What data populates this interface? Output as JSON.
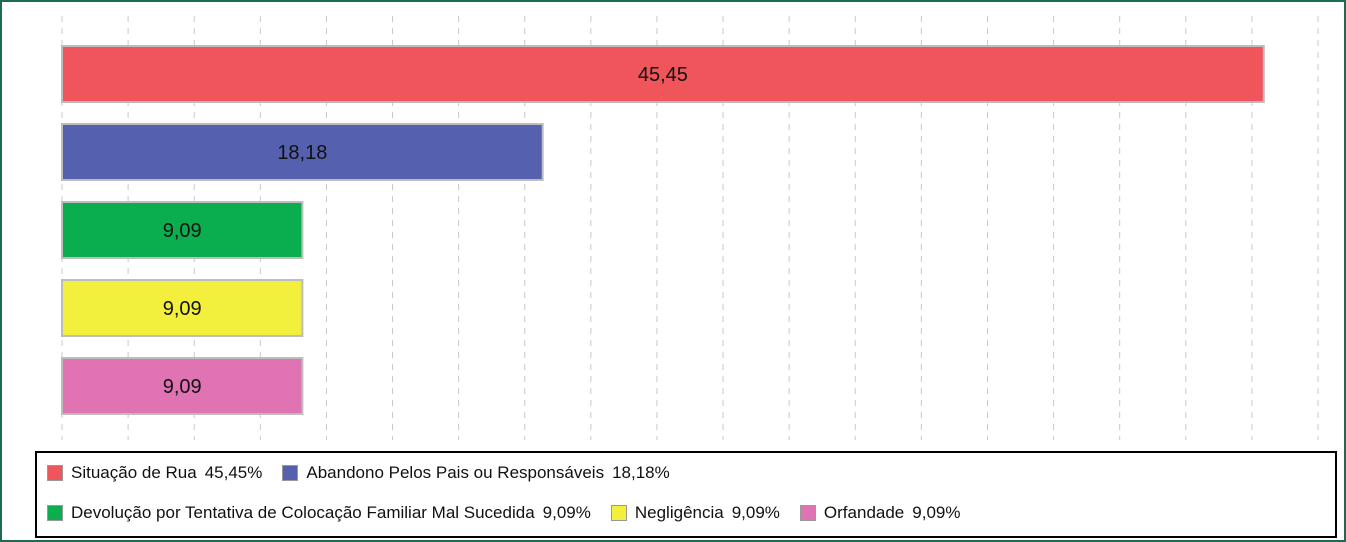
{
  "chart_data": {
    "type": "bar",
    "orientation": "horizontal",
    "categories": [
      "Situação de Rua",
      "Abandono Pelos Pais ou Responsáveis",
      "Devolução por Tentativa de Colocação Familiar Mal Sucedida",
      "Negligência",
      "Orfandade"
    ],
    "values": [
      45.45,
      18.18,
      9.09,
      9.09,
      9.09
    ],
    "data_labels": [
      "45,45",
      "18,18",
      "9,09",
      "9,09",
      "9,09"
    ],
    "colors": [
      "#ef555b",
      "#5560ae",
      "#0aae4e",
      "#f3ef3d",
      "#e073b2"
    ],
    "xlim": [
      0,
      47.5
    ],
    "grid": true,
    "legend_position": "bottom",
    "legend": [
      {
        "label": "Situação de Rua",
        "value": "45,45%"
      },
      {
        "label": "Abandono Pelos Pais ou Responsáveis",
        "value": "18,18%"
      },
      {
        "label": "Devolução por Tentativa de Colocação Familiar Mal Sucedida",
        "value": "9,09%"
      },
      {
        "label": "Negligência",
        "value": "9,09%"
      },
      {
        "label": "Orfandade",
        "value": "9,09%"
      }
    ]
  }
}
